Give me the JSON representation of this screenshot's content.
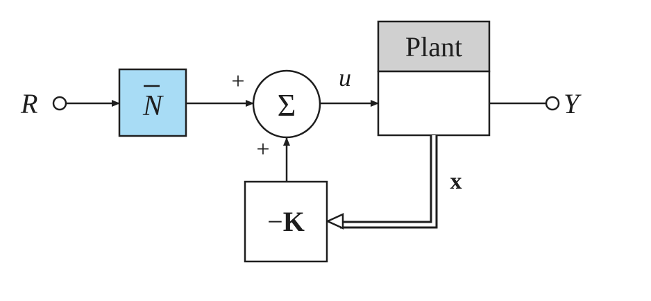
{
  "signals": {
    "reference": "R",
    "output": "Y",
    "control": "u",
    "state": "x"
  },
  "blocks": {
    "prefilter": {
      "symbol": "N",
      "fill": "#a8dcf5"
    },
    "summer": {
      "symbol": "Σ",
      "sign_top": "+",
      "sign_bottom": "+"
    },
    "plant": {
      "label": "Plant",
      "header_fill": "#d0d0d0"
    },
    "feedback": {
      "minus": "−",
      "gain": "K"
    }
  },
  "colors": {
    "line": "#1e1e1e",
    "background": "#ffffff"
  }
}
